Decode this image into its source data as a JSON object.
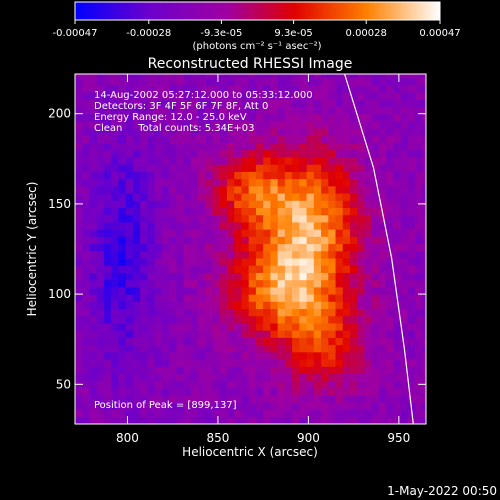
{
  "chart_data": {
    "type": "heatmap",
    "title": "Reconstructed RHESSI Image",
    "xlabel": "Heliocentric X (arcsec)",
    "ylabel": "Heliocentric Y (arcsec)",
    "xlim": [
      771,
      965
    ],
    "ylim": [
      28,
      222
    ],
    "x_ticks": [
      800,
      850,
      900,
      950
    ],
    "y_ticks": [
      50,
      100,
      150,
      200
    ],
    "colorbar": {
      "ticks": [
        "-0.00047",
        "-0.00028",
        "-9.3e-05",
        "9.3e-05",
        "0.00028",
        "0.00047"
      ],
      "values": [
        -0.00047,
        -0.00028,
        -9.3e-05,
        9.3e-05,
        0.00028,
        0.00047
      ],
      "range": [
        -0.00047,
        0.00047
      ],
      "unit_label": "(photons cm⁻² s⁻¹ asec⁻²)",
      "colors": [
        "#0000ff",
        "#6a00cc",
        "#a000a0",
        "#e00000",
        "#ff8000",
        "#ffffff"
      ]
    },
    "annotations": [
      "14-Aug-2002 05:27:12.000 to 05:33:12.000",
      "Detectors: 3F 4F 5F 6F 7F 8F, Att 0",
      "Energy Range: 12.0 - 25.0 keV",
      "Clean     Total counts: 5.34E+03"
    ],
    "peak_label": "Position of Peak = [899,137]",
    "peak": [
      899,
      137
    ],
    "limb_curve": {
      "x": [
        920,
        936,
        946,
        953,
        958
      ],
      "y": [
        222,
        170,
        120,
        70,
        28
      ]
    }
  },
  "footer": {
    "timestamp": "1-May-2022 00:50"
  }
}
